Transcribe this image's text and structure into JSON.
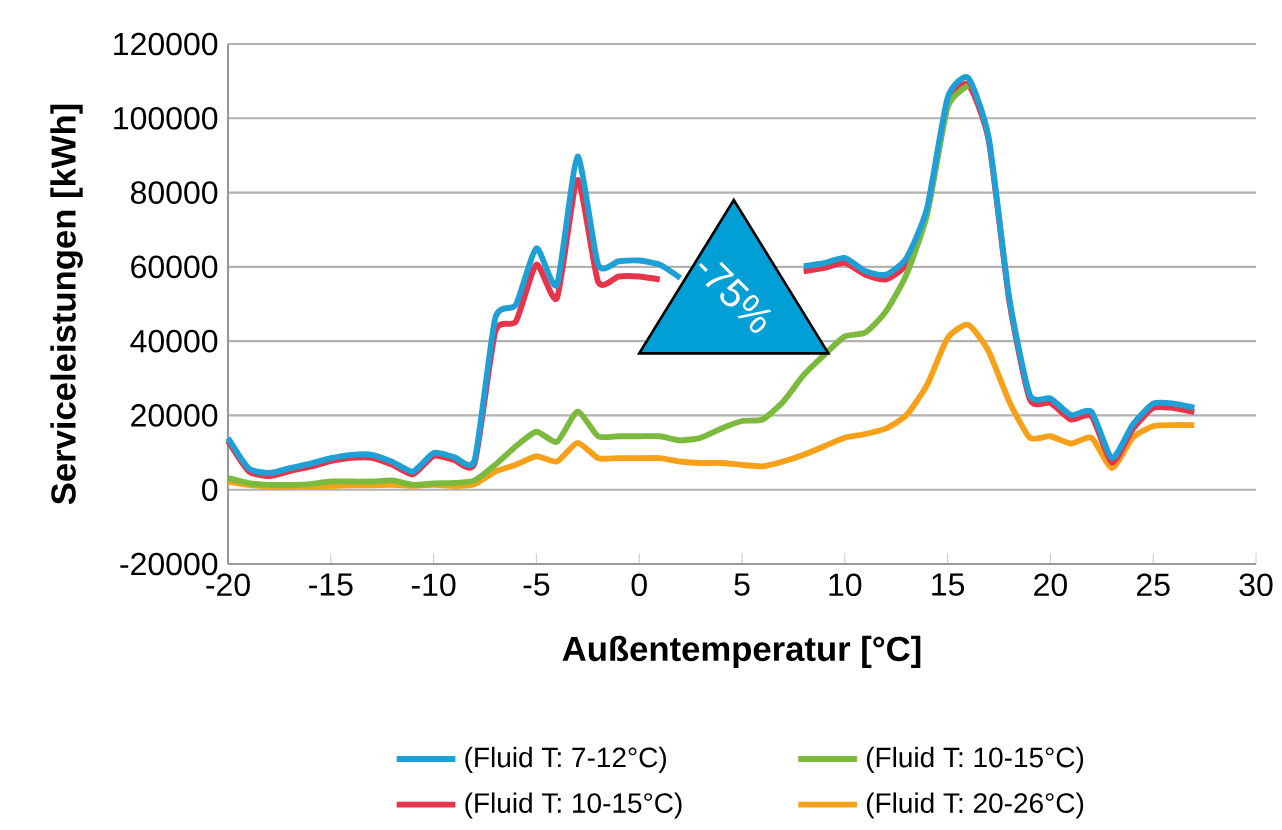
{
  "chart_data": {
    "type": "line",
    "xlabel": "Außentemperatur [°C]",
    "ylabel": "Serviceleistungen [kWh]",
    "xlim": [
      -20,
      30
    ],
    "xticks": [
      -20,
      -15,
      -10,
      -5,
      0,
      5,
      10,
      15,
      20,
      25,
      30
    ],
    "ylim": [
      -20000,
      120000
    ],
    "yticks": [
      -20000,
      0,
      20000,
      40000,
      60000,
      80000,
      100000,
      120000
    ],
    "grid": "y",
    "legend": "bottom",
    "marker": "none",
    "line_style": "solid",
    "x": [
      -20,
      -19,
      -18,
      -17,
      -16,
      -15,
      -14,
      -13,
      -12,
      -11,
      -10,
      -9,
      -8,
      -7,
      -6,
      -5,
      -4,
      -3,
      -2,
      -1,
      0,
      1,
      2,
      3,
      4,
      5,
      6,
      7,
      8,
      9,
      10,
      11,
      12,
      13,
      14,
      15,
      16,
      17,
      18,
      19,
      20,
      21,
      22,
      23,
      24,
      25,
      26,
      27
    ],
    "series": [
      {
        "name": "(Fluid T: 7-12°C)",
        "color": "#1e9fd6",
        "values": [
          13900,
          5800,
          4500,
          5800,
          7000,
          8500,
          9400,
          9400,
          7500,
          4900,
          9900,
          8800,
          8100,
          46200,
          49800,
          65000,
          55200,
          89700,
          60600,
          61500,
          61700,
          60600,
          57000,
          null,
          null,
          null,
          null,
          null,
          60200,
          61000,
          62400,
          58800,
          57900,
          62400,
          75800,
          105500,
          110900,
          94700,
          51600,
          25500,
          24600,
          20100,
          21000,
          8500,
          17500,
          23200,
          23200,
          22100
        ]
      },
      {
        "name": "(Fluid T: 10-15°C)",
        "color": "#7cba3d",
        "values": [
          3100,
          1800,
          1300,
          1300,
          1500,
          2200,
          2200,
          2200,
          2500,
          1300,
          1700,
          1800,
          2500,
          6700,
          11700,
          15600,
          12900,
          21000,
          14400,
          14400,
          14400,
          14400,
          13300,
          14000,
          16500,
          18500,
          18900,
          23700,
          30900,
          36300,
          41300,
          42300,
          48000,
          58000,
          74000,
          103000,
          108800,
          null,
          null,
          null,
          null,
          null,
          null,
          null,
          null,
          null,
          null,
          null
        ]
      },
      {
        "name": "(Fluid T: 10-15°C)",
        "color": "#e8344a",
        "values": [
          13100,
          5000,
          3700,
          5000,
          6200,
          7700,
          8600,
          8600,
          6700,
          4100,
          9100,
          8000,
          7300,
          42600,
          45300,
          60600,
          51600,
          83400,
          56000,
          57400,
          57400,
          56600,
          null,
          null,
          null,
          null,
          null,
          null,
          58800,
          59700,
          61100,
          57900,
          56600,
          60700,
          74600,
          103700,
          109100,
          94000,
          50800,
          24300,
          23400,
          18900,
          19800,
          7300,
          16300,
          22000,
          22000,
          20900
        ]
      },
      {
        "name": "(Fluid T: 20-26°C)",
        "color": "#f7a11a",
        "values": [
          2200,
          1300,
          900,
          900,
          1000,
          1000,
          1200,
          1200,
          1300,
          1000,
          1300,
          1000,
          1500,
          4900,
          6700,
          9000,
          7600,
          12600,
          8500,
          8500,
          8500,
          8500,
          7600,
          7200,
          7200,
          6700,
          6300,
          7600,
          9400,
          11700,
          14000,
          15000,
          16500,
          20100,
          28200,
          40800,
          44400,
          37200,
          23700,
          14000,
          14400,
          12400,
          14000,
          5800,
          14000,
          17100,
          17400,
          17400
        ]
      }
    ],
    "annotations": [
      "-75%"
    ]
  }
}
